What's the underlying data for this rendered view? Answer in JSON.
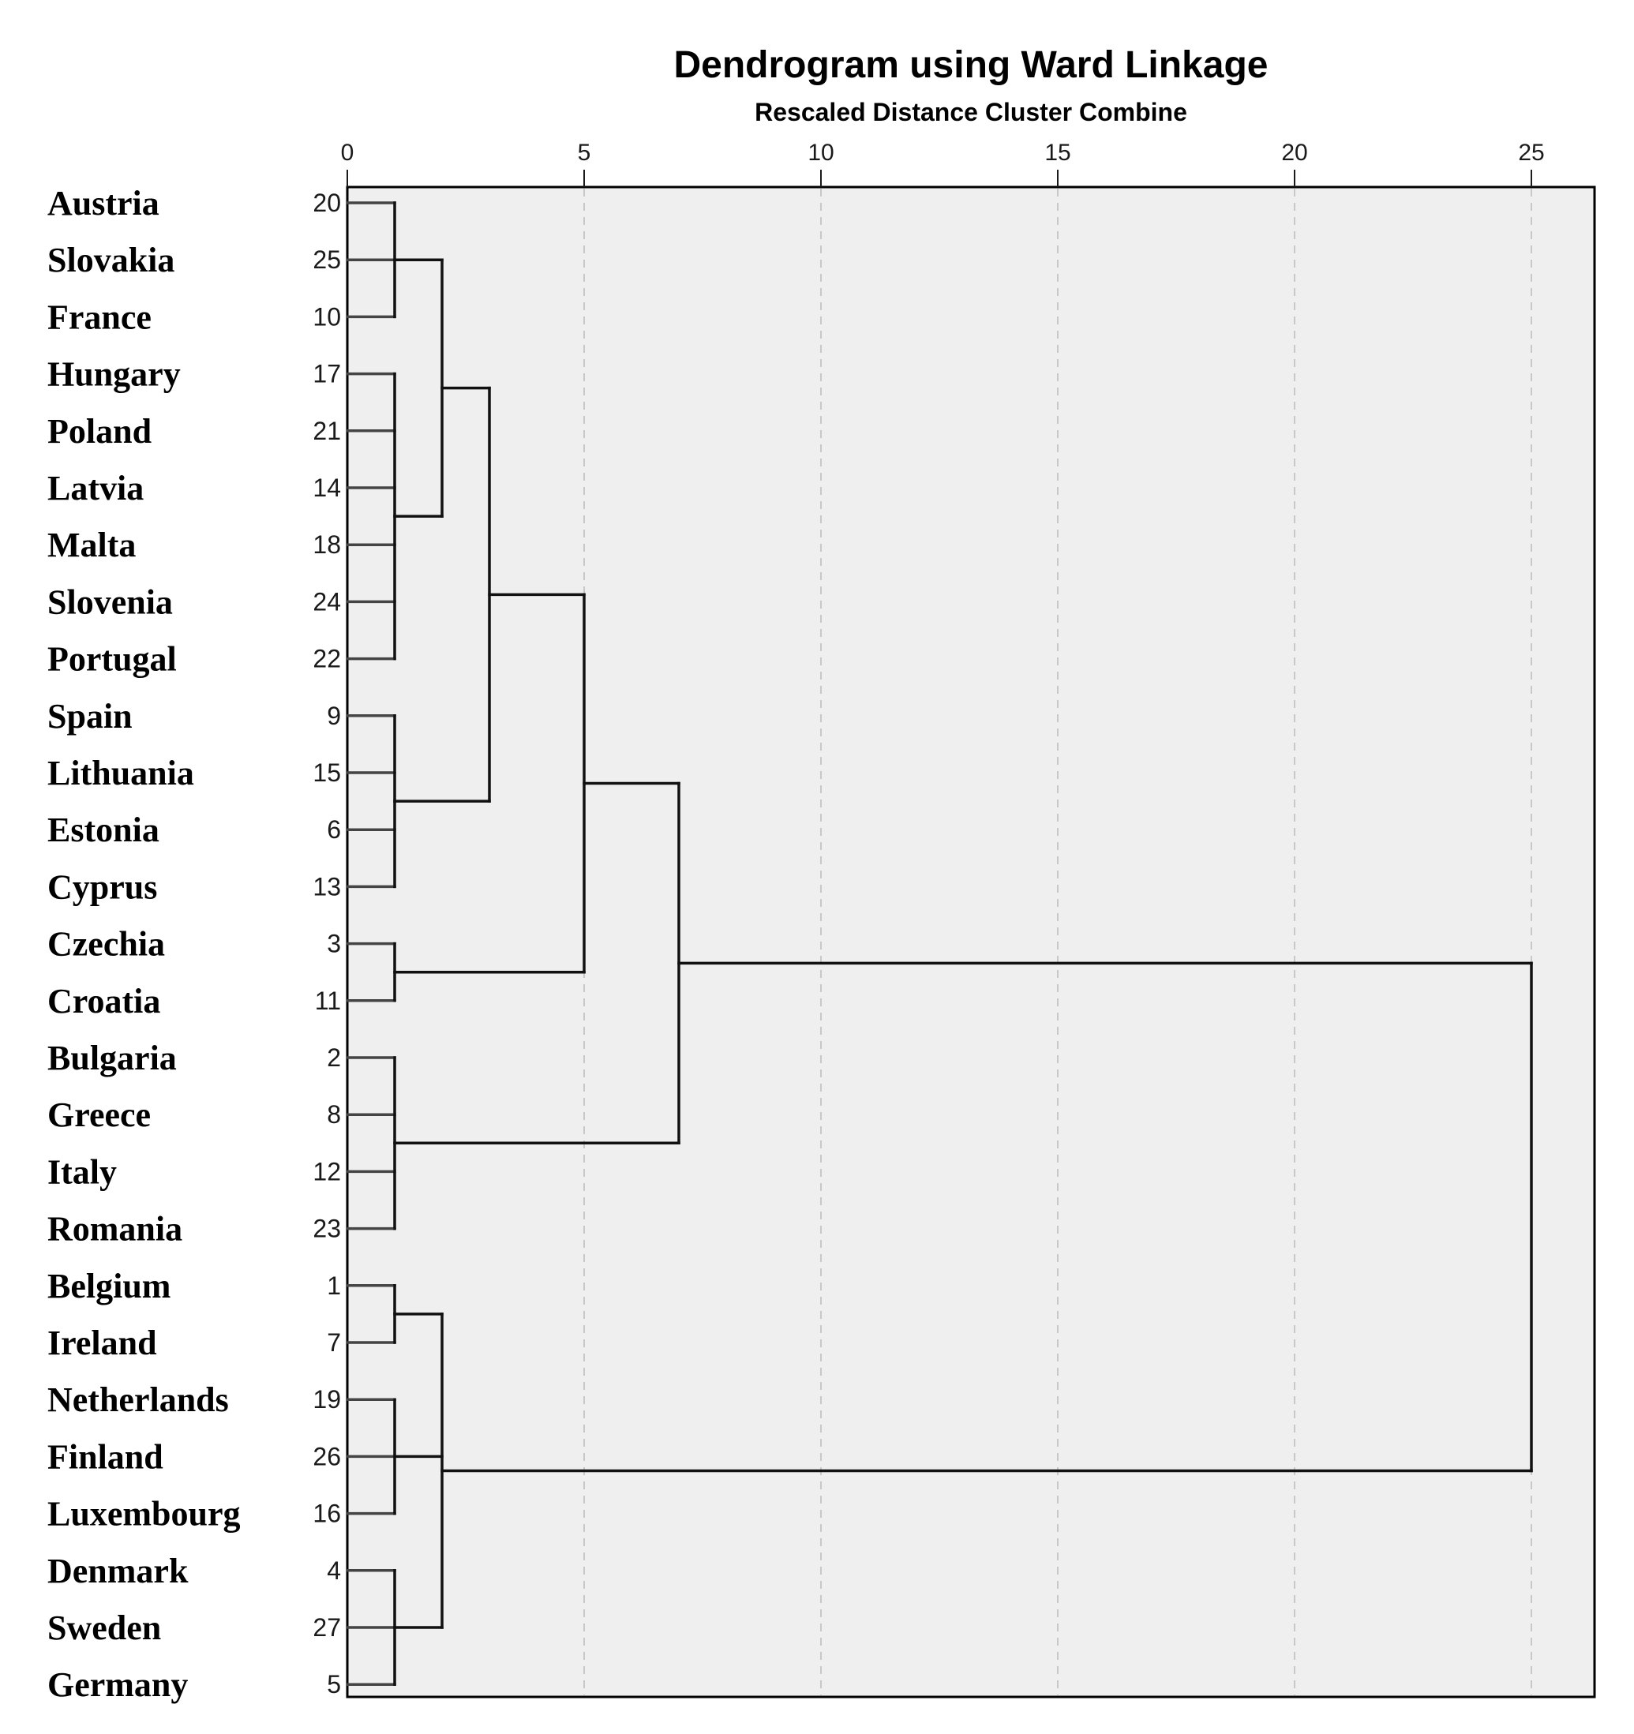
{
  "chart_data": {
    "type": "dendrogram",
    "title": "Dendrogram using Ward Linkage",
    "subtitle": "Rescaled Distance Cluster Combine",
    "xlabel": "Rescaled Distance Cluster Combine",
    "xlim": [
      0,
      26.3
    ],
    "x_ticks": [
      0,
      5,
      10,
      15,
      20,
      25
    ],
    "grid": "vertical dashed",
    "background_color": "#efefef",
    "leaves": [
      {
        "name": "Austria",
        "id": "20"
      },
      {
        "name": "Slovakia",
        "id": "25"
      },
      {
        "name": "France",
        "id": "10"
      },
      {
        "name": "Hungary",
        "id": "17"
      },
      {
        "name": "Poland",
        "id": "21"
      },
      {
        "name": "Latvia",
        "id": "14"
      },
      {
        "name": "Malta",
        "id": "18"
      },
      {
        "name": "Slovenia",
        "id": "24"
      },
      {
        "name": "Portugal",
        "id": "22"
      },
      {
        "name": "Spain",
        "id": "9"
      },
      {
        "name": "Lithuania",
        "id": "15"
      },
      {
        "name": "Estonia",
        "id": "6"
      },
      {
        "name": "Cyprus",
        "id": "13"
      },
      {
        "name": "Czechia",
        "id": "3"
      },
      {
        "name": "Croatia",
        "id": "11"
      },
      {
        "name": "Bulgaria",
        "id": "2"
      },
      {
        "name": "Greece",
        "id": "8"
      },
      {
        "name": "Italy",
        "id": "12"
      },
      {
        "name": "Romania",
        "id": "23"
      },
      {
        "name": "Belgium",
        "id": "1"
      },
      {
        "name": "Ireland",
        "id": "7"
      },
      {
        "name": "Netherlands",
        "id": "19"
      },
      {
        "name": "Finland",
        "id": "26"
      },
      {
        "name": "Luxembourg",
        "id": "16"
      },
      {
        "name": "Denmark",
        "id": "4"
      },
      {
        "name": "Sweden",
        "id": "27"
      },
      {
        "name": "Germany",
        "id": "5"
      }
    ],
    "merges": [
      {
        "children": [
          "L0",
          "L1",
          "L2"
        ],
        "distance": 1
      },
      {
        "children": [
          "L3",
          "L4",
          "L5",
          "L6",
          "L7",
          "L8"
        ],
        "distance": 1
      },
      {
        "children": [
          "L9",
          "L10",
          "L11",
          "L12"
        ],
        "distance": 1
      },
      {
        "children": [
          "L13",
          "L14"
        ],
        "distance": 1
      },
      {
        "children": [
          "L15",
          "L16",
          "L17",
          "L18"
        ],
        "distance": 1
      },
      {
        "children": [
          "L19",
          "L20"
        ],
        "distance": 1
      },
      {
        "children": [
          "L21",
          "L22",
          "L23"
        ],
        "distance": 1
      },
      {
        "children": [
          "L24",
          "L25",
          "L26"
        ],
        "distance": 1
      },
      {
        "children": [
          "C0",
          "C1"
        ],
        "distance": 2
      },
      {
        "children": [
          "C5",
          "C6",
          "C7"
        ],
        "distance": 2
      },
      {
        "children": [
          "C8",
          "C2"
        ],
        "distance": 3
      },
      {
        "children": [
          "C10",
          "C3"
        ],
        "distance": 5
      },
      {
        "children": [
          "C11",
          "C4"
        ],
        "distance": 7
      },
      {
        "children": [
          "C12",
          "C9"
        ],
        "distance": 25
      }
    ]
  }
}
